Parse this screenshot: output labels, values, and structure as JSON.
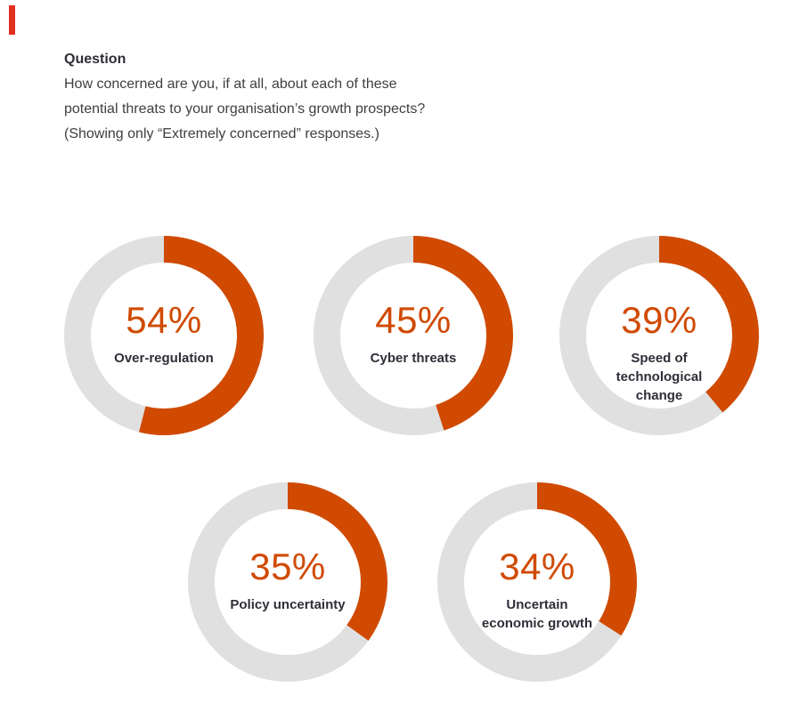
{
  "colors": {
    "accent_bar": "#e0301e",
    "arc_fill": "#d04a02",
    "arc_track": "#e0e0e0",
    "percent_text": "#d04a02",
    "label_text": "#2e2e38",
    "body_text": "#3f3f42",
    "background": "#ffffff"
  },
  "question": {
    "heading": "Question",
    "lines": [
      "How concerned are you, if at all, about each of these",
      "potential threats to your organisation’s growth prospects?",
      "(Showing only “Extremely concerned” responses.)"
    ]
  },
  "chart_data": {
    "type": "pie",
    "subtype": "donut-multiples",
    "unit": "%",
    "value_range": [
      0,
      100
    ],
    "arc_start": "top",
    "arc_direction": "clockwise",
    "series": [
      {
        "label": "Over-regulation",
        "label_lines": [
          "Over-regulation"
        ],
        "value": 54,
        "display_value": "54%"
      },
      {
        "label": "Cyber threats",
        "label_lines": [
          "Cyber threats"
        ],
        "value": 45,
        "display_value": "45%"
      },
      {
        "label": "Speed of technological change",
        "label_lines": [
          "Speed of",
          "technological",
          "change"
        ],
        "value": 39,
        "display_value": "39%"
      },
      {
        "label": "Policy uncertainty",
        "label_lines": [
          "Policy uncertainty"
        ],
        "value": 35,
        "display_value": "35%"
      },
      {
        "label": "Uncertain economic growth",
        "label_lines": [
          "Uncertain",
          "economic growth"
        ],
        "value": 34,
        "display_value": "34%"
      }
    ]
  }
}
